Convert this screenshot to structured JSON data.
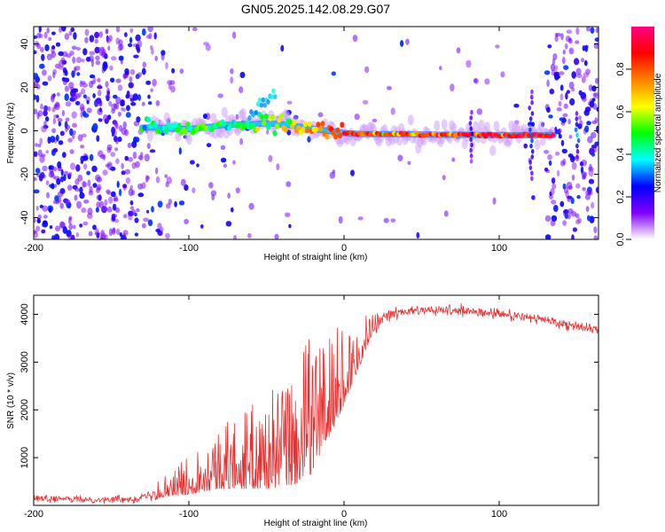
{
  "title": "GN05.2025.142.08.29.G07",
  "chart_data": [
    {
      "type": "heatmap",
      "title": "GN05.2025.142.08.29.G07",
      "xlabel": "Height of straight line (km)",
      "ylabel": "Frequency (Hz)",
      "xlim": [
        -200,
        164
      ],
      "ylim": [
        -50,
        48
      ],
      "xticks": [
        "-200",
        "-100",
        "0",
        "100"
      ],
      "xtick_values": [
        -200,
        -100,
        0,
        100
      ],
      "yticks": [
        "-40",
        "-20",
        "0",
        "20",
        "40"
      ],
      "ytick_values": [
        -40,
        -20,
        0,
        20,
        40
      ],
      "colorbar": {
        "label": "Normalized spectral amplitude",
        "range": [
          0,
          1
        ],
        "ticks": [
          "0.0",
          "0.2",
          "0.4",
          "0.6",
          "0.8"
        ],
        "tick_values": [
          0.0,
          0.2,
          0.4,
          0.6,
          0.8
        ],
        "colormap": [
          "#ffffff",
          "#8000ff",
          "#0000ff",
          "#00ffff",
          "#00ff00",
          "#ffff00",
          "#ff8000",
          "#ff0000",
          "#ff0080"
        ]
      },
      "ridge": {
        "x": [
          -130,
          -120,
          -110,
          -100,
          -90,
          -80,
          -70,
          -60,
          -50,
          -40,
          -30,
          -20,
          -10,
          0,
          10,
          20,
          40,
          60,
          80,
          100,
          120,
          135
        ],
        "frequency": [
          1.5,
          1.5,
          1.0,
          0.8,
          1.5,
          2.5,
          3.0,
          3.0,
          3.5,
          3.0,
          2.0,
          1.0,
          0.0,
          -1.0,
          -1.5,
          -1.5,
          -1.5,
          -1.8,
          -1.8,
          -2.0,
          -2.0,
          -2.0
        ],
        "amplitude": [
          0.35,
          0.4,
          0.45,
          0.55,
          0.5,
          0.45,
          0.45,
          0.45,
          0.5,
          0.55,
          0.65,
          0.75,
          0.8,
          0.85,
          0.8,
          0.75,
          0.75,
          0.8,
          0.85,
          0.9,
          0.92,
          0.95
        ]
      },
      "grid": false
    },
    {
      "type": "line",
      "xlabel": "Height of straight line (km)",
      "ylabel": "SNR (10 * v/v)",
      "xlim": [
        -200,
        164
      ],
      "ylim": [
        0,
        4400
      ],
      "xticks": [
        "-200",
        "-100",
        "0",
        "100"
      ],
      "xtick_values": [
        -200,
        -100,
        0,
        100
      ],
      "yticks": [
        "1000",
        "2000",
        "3000",
        "4000"
      ],
      "ytick_values": [
        1000,
        2000,
        3000,
        4000
      ],
      "series": [
        {
          "color": "#e83030",
          "x": [
            -200,
            -180,
            -160,
            -140,
            -130,
            -120,
            -110,
            -100,
            -90,
            -80,
            -70,
            -60,
            -50,
            -40,
            -30,
            -25,
            -20,
            -15,
            -10,
            -5,
            0,
            5,
            10,
            15,
            20,
            25,
            30,
            40,
            50,
            60,
            70,
            80,
            90,
            100,
            110,
            120,
            130,
            140,
            150,
            164
          ],
          "y": [
            150,
            130,
            120,
            130,
            170,
            240,
            320,
            420,
            550,
            650,
            700,
            750,
            800,
            900,
            1000,
            1200,
            1400,
            1700,
            1900,
            2200,
            2500,
            2800,
            3100,
            3500,
            3800,
            3950,
            4000,
            4050,
            4080,
            4080,
            4070,
            4050,
            4030,
            4000,
            3970,
            3930,
            3880,
            3820,
            3760,
            3680
          ],
          "noise": [
            70,
            70,
            70,
            80,
            100,
            150,
            250,
            380,
            500,
            600,
            700,
            800,
            900,
            1000,
            1100,
            1300,
            1400,
            1200,
            1100,
            900,
            800,
            600,
            400,
            300,
            200,
            150,
            120,
            110,
            100,
            100,
            110,
            120,
            130,
            120,
            110,
            110,
            110,
            110,
            120,
            130
          ]
        }
      ],
      "grid": false
    }
  ]
}
